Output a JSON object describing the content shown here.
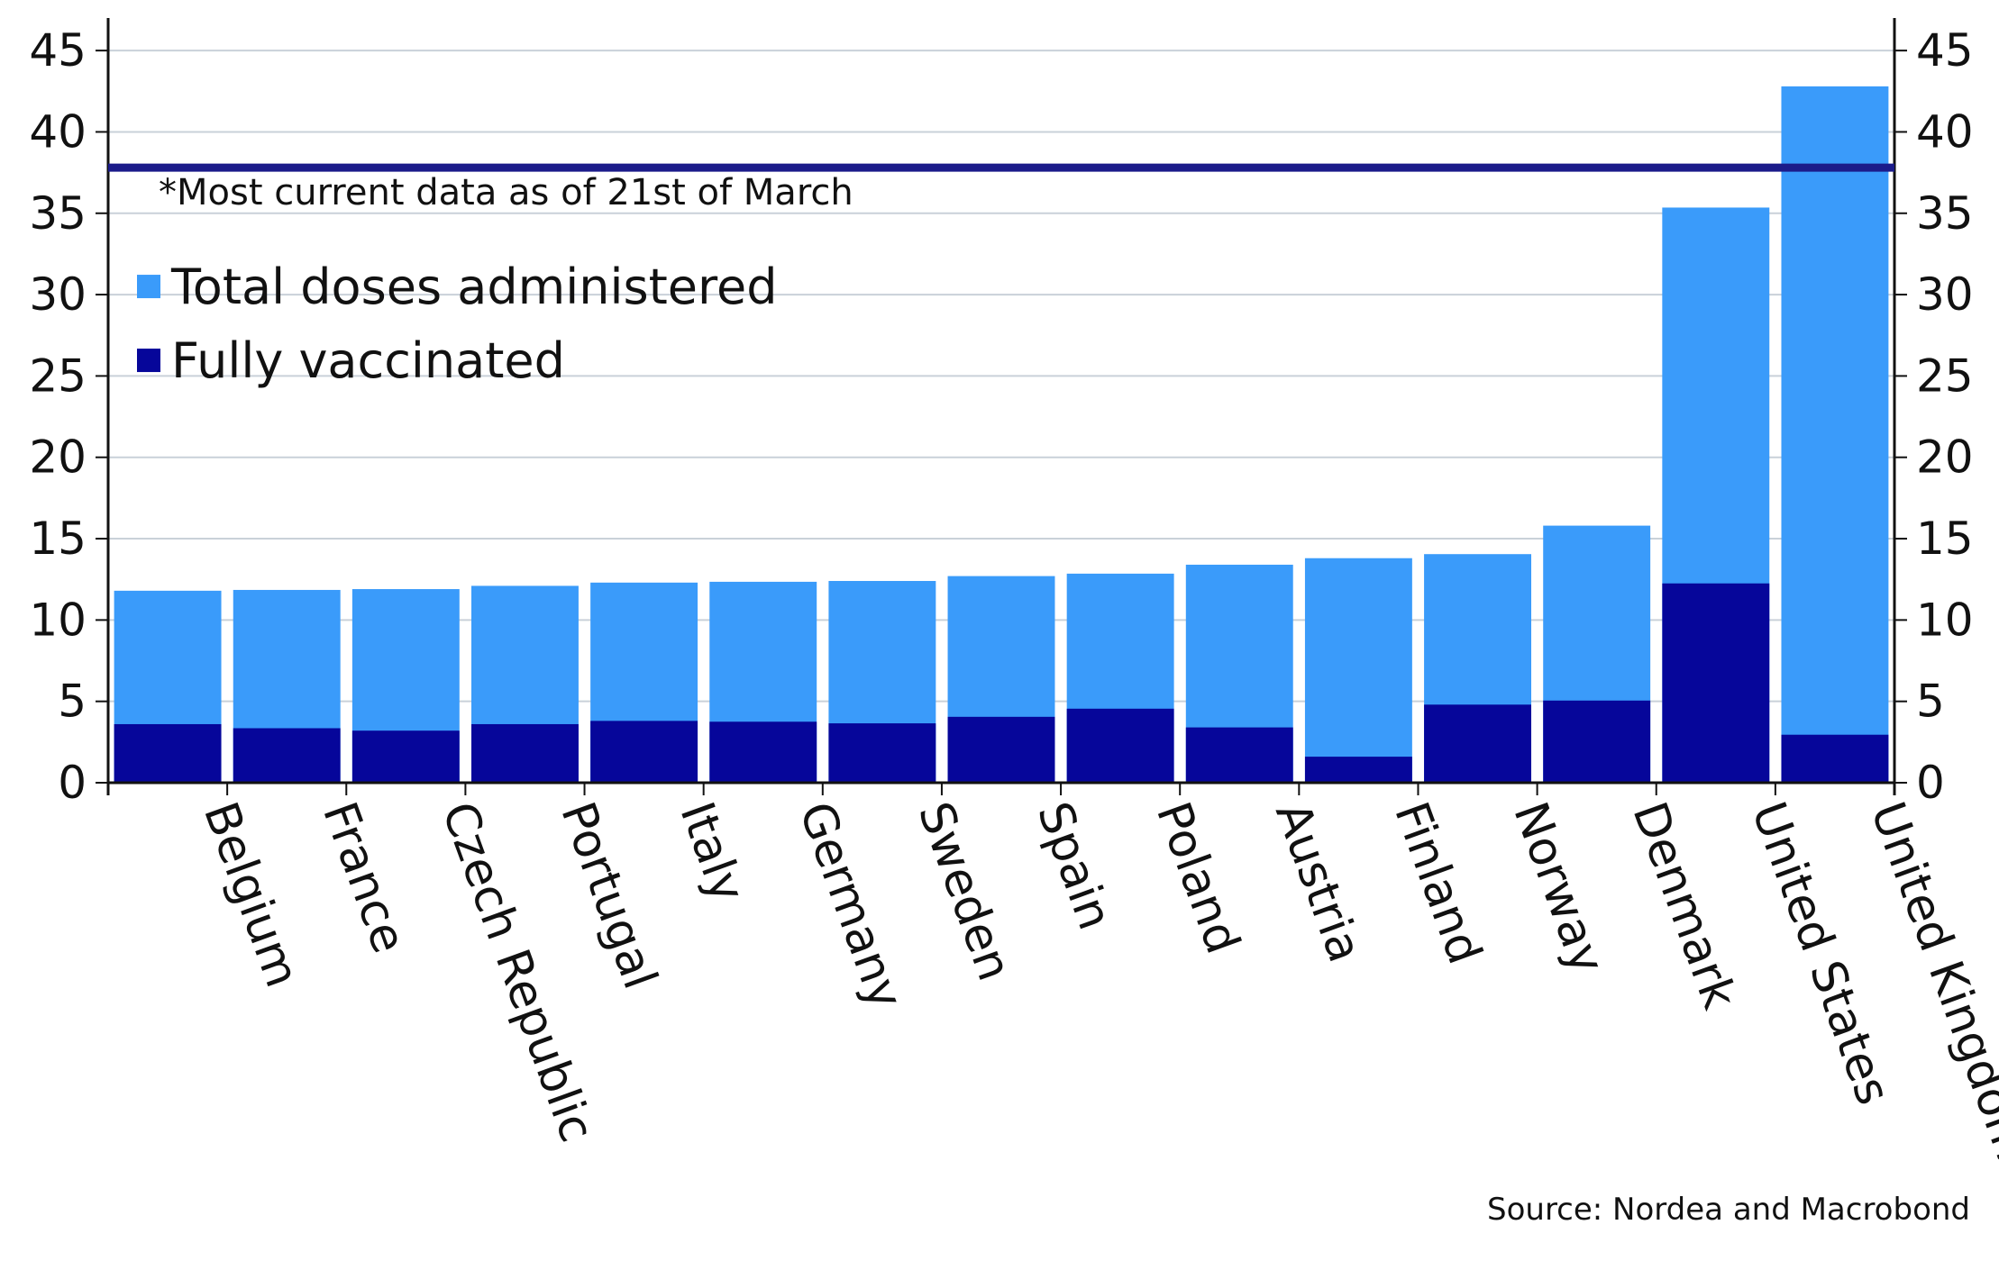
{
  "chart_data": {
    "type": "bar",
    "stacking": "overlaid",
    "categories": [
      "Belgium",
      "France",
      "Czech Republic",
      "Portugal",
      "Italy",
      "Germany",
      "Sweden",
      "Spain",
      "Poland",
      "Austria",
      "Finland",
      "Norway",
      "Denmark",
      "United States",
      "United Kingdom"
    ],
    "series": [
      {
        "name": "Total doses administered",
        "color": "#3A9BFA",
        "values": [
          11.8,
          11.85,
          11.9,
          12.1,
          12.3,
          12.35,
          12.4,
          12.7,
          12.85,
          13.4,
          13.8,
          14.05,
          15.8,
          35.35,
          42.8
        ]
      },
      {
        "name": "Fully vaccinated",
        "color": "#06069A",
        "values": [
          3.6,
          3.35,
          3.2,
          3.6,
          3.8,
          3.75,
          3.65,
          4.05,
          4.55,
          3.4,
          1.6,
          4.8,
          5.05,
          12.25,
          2.95
        ]
      }
    ],
    "reference_line": {
      "value": 37.8,
      "color": "#1B1B8A"
    },
    "title": "",
    "xlabel": "",
    "ylabel": "",
    "ylim": [
      0,
      47
    ],
    "yticks": [
      0,
      5,
      10,
      15,
      20,
      25,
      30,
      35,
      40,
      45
    ],
    "secondary_y_axis": true,
    "grid": "horizontal",
    "legend_position": "top-left",
    "annotation": "*Most current data as of 21st of March",
    "source": "Source: Nordea and Macrobond"
  }
}
